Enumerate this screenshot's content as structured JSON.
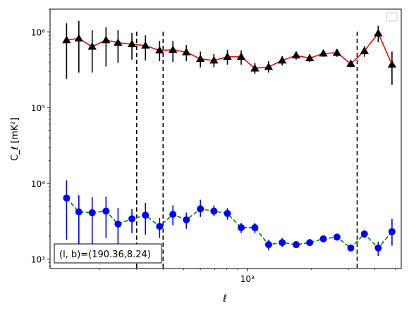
{
  "chart_data": {
    "type": "scatter",
    "xlabel": "ℓ",
    "ylabel": "C_ℓ  [mK²]",
    "xscale": "log",
    "yscale": "log",
    "xlim": [
      117,
      5330
    ],
    "ylim": [
      750,
      2000000
    ],
    "x_tick_labels": [
      {
        "value": 1000,
        "label": "10³"
      }
    ],
    "y_tick_labels": [
      {
        "value": 1000,
        "label": "10³"
      },
      {
        "value": 10000,
        "label": "10⁴"
      },
      {
        "value": 100000,
        "label": "10⁵"
      },
      {
        "value": 1000000,
        "label": "10⁶"
      }
    ],
    "legend": {
      "placement": "top-right",
      "entries": []
    },
    "annotation": "(l, b)=(190.36,8.24)",
    "vlines": [
      300,
      400,
      3300
    ],
    "grid": false,
    "series": [
      {
        "marker": "triangle",
        "marker_color": "#000000",
        "line_color": "#ff0000",
        "line_style": "solid",
        "points": [
          {
            "x": 140,
            "y": 780000,
            "lo": 240000,
            "hi": 1300000
          },
          {
            "x": 160,
            "y": 820000,
            "lo": 290000,
            "hi": 1400000
          },
          {
            "x": 185,
            "y": 640000,
            "lo": 290000,
            "hi": 1050000
          },
          {
            "x": 215,
            "y": 780000,
            "lo": 350000,
            "hi": 1150000
          },
          {
            "x": 245,
            "y": 720000,
            "lo": 390000,
            "hi": 1050000
          },
          {
            "x": 285,
            "y": 690000,
            "lo": 430000,
            "hi": 970000
          },
          {
            "x": 330,
            "y": 660000,
            "lo": 420000,
            "hi": 900000
          },
          {
            "x": 385,
            "y": 570000,
            "lo": 410000,
            "hi": 760000
          },
          {
            "x": 445,
            "y": 580000,
            "lo": 400000,
            "hi": 760000
          },
          {
            "x": 515,
            "y": 540000,
            "lo": 410000,
            "hi": 670000
          },
          {
            "x": 600,
            "y": 440000,
            "lo": 340000,
            "hi": 550000
          },
          {
            "x": 695,
            "y": 420000,
            "lo": 340000,
            "hi": 510000
          },
          {
            "x": 805,
            "y": 470000,
            "lo": 370000,
            "hi": 580000
          },
          {
            "x": 935,
            "y": 470000,
            "lo": 370000,
            "hi": 570000
          },
          {
            "x": 1085,
            "y": 330000,
            "lo": 280000,
            "hi": 390000
          },
          {
            "x": 1260,
            "y": 345000,
            "lo": 290000,
            "hi": 410000
          },
          {
            "x": 1460,
            "y": 420000,
            "lo": 360000,
            "hi": 480000
          },
          {
            "x": 1700,
            "y": 490000,
            "lo": 430000,
            "hi": 550000
          },
          {
            "x": 1970,
            "y": 450000,
            "lo": 400000,
            "hi": 510000
          },
          {
            "x": 2285,
            "y": 520000,
            "lo": 470000,
            "hi": 570000
          },
          {
            "x": 2650,
            "y": 530000,
            "lo": 470000,
            "hi": 590000
          },
          {
            "x": 3080,
            "y": 380000,
            "lo": 340000,
            "hi": 420000
          },
          {
            "x": 3570,
            "y": 560000,
            "lo": 470000,
            "hi": 650000
          },
          {
            "x": 4150,
            "y": 960000,
            "lo": 730000,
            "hi": 1200000
          },
          {
            "x": 4820,
            "y": 370000,
            "lo": 200000,
            "hi": 550000
          }
        ]
      },
      {
        "marker": "circle",
        "marker_color": "#0000ff",
        "line_color": "#008000",
        "line_style": "dashed",
        "points": [
          {
            "x": 140,
            "y": 6400,
            "lo": 1800,
            "hi": 11000
          },
          {
            "x": 160,
            "y": 4200,
            "lo": 1200,
            "hi": 7000
          },
          {
            "x": 185,
            "y": 4100,
            "lo": 1500,
            "hi": 6600
          },
          {
            "x": 215,
            "y": 4300,
            "lo": 1900,
            "hi": 6700
          },
          {
            "x": 245,
            "y": 2900,
            "lo": 1100,
            "hi": 4700
          },
          {
            "x": 285,
            "y": 3400,
            "lo": 2200,
            "hi": 4600
          },
          {
            "x": 330,
            "y": 3800,
            "lo": 2100,
            "hi": 5500
          },
          {
            "x": 385,
            "y": 2700,
            "lo": 1900,
            "hi": 3500
          },
          {
            "x": 445,
            "y": 3900,
            "lo": 2800,
            "hi": 5100
          },
          {
            "x": 515,
            "y": 3300,
            "lo": 2500,
            "hi": 4100
          },
          {
            "x": 600,
            "y": 4600,
            "lo": 3600,
            "hi": 6100
          },
          {
            "x": 695,
            "y": 4300,
            "lo": 3700,
            "hi": 5100
          },
          {
            "x": 805,
            "y": 4000,
            "lo": 3300,
            "hi": 4700
          },
          {
            "x": 935,
            "y": 2600,
            "lo": 2200,
            "hi": 3000
          },
          {
            "x": 1085,
            "y": 2600,
            "lo": 2200,
            "hi": 3000
          },
          {
            "x": 1260,
            "y": 1550,
            "lo": 1300,
            "hi": 1800
          },
          {
            "x": 1460,
            "y": 1650,
            "lo": 1450,
            "hi": 1900
          },
          {
            "x": 1700,
            "y": 1550,
            "lo": 1400,
            "hi": 1700
          },
          {
            "x": 1970,
            "y": 1650,
            "lo": 1500,
            "hi": 1800
          },
          {
            "x": 2285,
            "y": 1850,
            "lo": 1700,
            "hi": 2000
          },
          {
            "x": 2650,
            "y": 1950,
            "lo": 1800,
            "hi": 2100
          },
          {
            "x": 3080,
            "y": 1400,
            "lo": 1300,
            "hi": 1550
          },
          {
            "x": 3570,
            "y": 2150,
            "lo": 1900,
            "hi": 2400
          },
          {
            "x": 4150,
            "y": 1400,
            "lo": 1100,
            "hi": 1700
          },
          {
            "x": 4820,
            "y": 2300,
            "lo": 1500,
            "hi": 3400
          }
        ]
      }
    ]
  }
}
